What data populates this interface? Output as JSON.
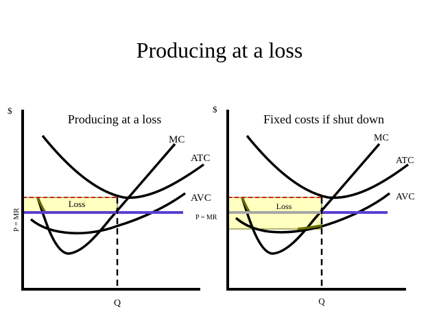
{
  "slide": {
    "title": "Producing at a loss"
  },
  "panels": [
    {
      "id": "left",
      "title": "Producing at a loss",
      "y_axis": "$",
      "x_label": "Q",
      "price_label": "P = MR",
      "region_label": "Loss",
      "curves": {
        "mc": "MC",
        "atc": "ATC",
        "avc": "AVC"
      }
    },
    {
      "id": "right",
      "title": "Fixed costs if shut down",
      "y_axis": "$",
      "x_label": "Q",
      "price_label": "P = MR",
      "region_label": "Loss",
      "curves": {
        "mc": "MC",
        "atc": "ATC",
        "avc": "AVC"
      }
    }
  ],
  "colors": {
    "curve": "#000000",
    "price_line": "#5a3fd0",
    "price_line_shutdown": "#a8a8a8",
    "loss_fill": "#ffffc0",
    "atc_dashed": "#cc2222",
    "mc_overlay": "#6b6b00"
  }
}
